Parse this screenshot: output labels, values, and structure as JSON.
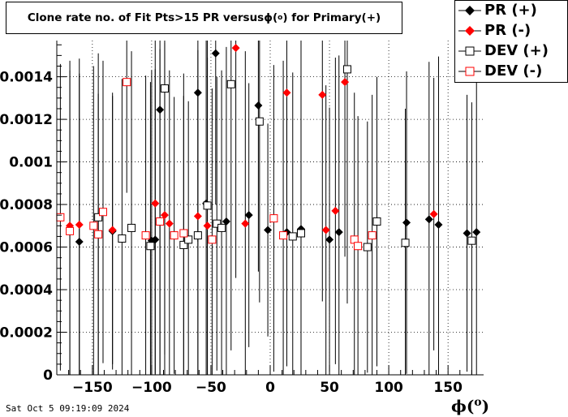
{
  "title_main": "Clone rate no. of Fit Pts>15 PR versus ",
  "title_phi": "ϕ(",
  "title_deg": "o",
  "title_tail": ") for Primary(+)",
  "xlabel_phi": "ϕ(",
  "xlabel_deg": "o",
  "xlabel_close": ")",
  "datestamp": "Sat Oct  5 09:19:09 2024",
  "legend": [
    {
      "label": "PR (+)",
      "color": "#000000",
      "marker": "diamond-filled"
    },
    {
      "label": "PR (-)",
      "color": "#ff0000",
      "marker": "diamond-filled"
    },
    {
      "label": "DEV (+)",
      "color": "#000000",
      "marker": "square-open"
    },
    {
      "label": "DEV (-)",
      "color": "#ff0000",
      "marker": "square-open"
    }
  ],
  "chart_data": {
    "type": "scatter",
    "title": "Clone rate no. of Fit Pts>15 PR versus ϕ(o) for Primary(+)",
    "xlabel": "ϕ(o)",
    "ylabel": "",
    "xlim": [
      -180,
      180
    ],
    "ylim": [
      0,
      0.00157
    ],
    "xticks": [
      -150,
      -100,
      -50,
      0,
      50,
      100,
      150
    ],
    "xtick_labels": [
      "−150",
      "−100",
      "−50",
      "0",
      "50",
      "100",
      "150"
    ],
    "yticks": [
      0,
      0.0002,
      0.0004,
      0.0006,
      0.0008,
      0.001,
      0.0012,
      0.0014
    ],
    "ytick_labels": [
      "0",
      "0.0002",
      "0.0004",
      "0.0006",
      "0.0008",
      "0.001",
      "0.0012",
      "0.0014"
    ],
    "grid": true,
    "legend_position": "top-right",
    "series": [
      {
        "name": "PR (+)",
        "color": "#000000",
        "marker": "diamond-filled",
        "x": [
          -161,
          -133,
          -100,
          -97,
          -93,
          -61,
          -54,
          -46,
          -37,
          -18,
          -10,
          -2,
          14,
          26,
          50,
          58,
          115,
          134,
          142,
          166,
          174
        ],
        "y": [
          0.000625,
          0.000675,
          0.00063,
          0.000635,
          0.001245,
          0.001325,
          0.000805,
          0.00151,
          0.00072,
          0.00075,
          0.001265,
          0.00068,
          0.00067,
          0.000685,
          0.000635,
          0.00067,
          0.000715,
          0.00073,
          0.000705,
          0.000665,
          0.00067
        ],
        "err": [
          0.00079,
          0.00065,
          0.0008,
          0.0008,
          0.0013,
          0.0007,
          0.001,
          0.00071,
          0.00082,
          0.00062,
          0.00078,
          0.0005,
          0.00063,
          0.00091,
          0.00062,
          0.00083,
          0.00071,
          0.00074,
          0.00079,
          0.00065,
          0.00072
        ]
      },
      {
        "name": "PR (-)",
        "color": "#ff0000",
        "marker": "diamond-filled",
        "x": [
          -169,
          -161,
          -133,
          -97,
          -89,
          -85,
          -61,
          -53,
          -29,
          -21,
          14,
          44,
          47,
          55,
          63,
          138
        ],
        "y": [
          0.0007,
          0.000705,
          0.00068,
          0.000805,
          0.00075,
          0.00071,
          0.000745,
          0.0007,
          0.001535,
          0.00071,
          0.001325,
          0.001315,
          0.00068,
          0.00077,
          0.001375,
          0.000755
        ],
        "err": [
          0.00073,
          0.00078,
          0.00063,
          0.0008,
          0.00081,
          0.00072,
          0.00078,
          0.00079,
          0.00108,
          0.00081,
          0.00065,
          0.00097,
          0.00068,
          0.00072,
          0.00082,
          0.00064
        ]
      },
      {
        "name": "DEV (+)",
        "color": "#000000",
        "marker": "square-open",
        "x": [
          -145,
          -125,
          -117,
          -101,
          -89,
          -73,
          -69,
          -61,
          -53,
          -45,
          -41,
          -33,
          -9,
          19,
          26,
          65,
          82,
          90,
          114,
          170
        ],
        "y": [
          0.00074,
          0.00064,
          0.00069,
          0.000605,
          0.001345,
          0.00061,
          0.000635,
          0.000655,
          0.000795,
          0.00071,
          0.00069,
          0.001365,
          0.00119,
          0.00065,
          0.000665,
          0.001435,
          0.0006,
          0.00072,
          0.00062,
          0.00063
        ],
        "err": [
          0.00077,
          0.00075,
          0.00083,
          0.00077,
          0.00125,
          0.0007,
          0.00065,
          0.00073,
          0.00081,
          0.00069,
          0.00074,
          0.00125,
          0.00085,
          0.00077,
          0.00065,
          0.0011,
          0.00059,
          0.00068,
          0.00063,
          0.00065
        ]
      },
      {
        "name": "DEV (-)",
        "color": "#ff0000",
        "marker": "square-open",
        "x": [
          -177,
          -169,
          -149,
          -145,
          -141,
          -121,
          -105,
          -93,
          -81,
          -73,
          -49,
          3,
          11,
          71,
          74,
          86
        ],
        "y": [
          0.00074,
          0.000675,
          0.0007,
          0.00066,
          0.000765,
          0.001375,
          0.000655,
          0.00072,
          0.000655,
          0.000665,
          0.000635,
          0.000735,
          0.000655,
          0.000635,
          0.000605,
          0.000655
        ],
        "err": [
          0.00072,
          0.0008,
          0.00075,
          0.00066,
          0.00071,
          0.00052,
          0.00075,
          0.00081,
          0.00065,
          0.00075,
          0.00071,
          0.00072,
          0.00082,
          0.00069,
          0.00061,
          0.00066
        ]
      }
    ]
  }
}
